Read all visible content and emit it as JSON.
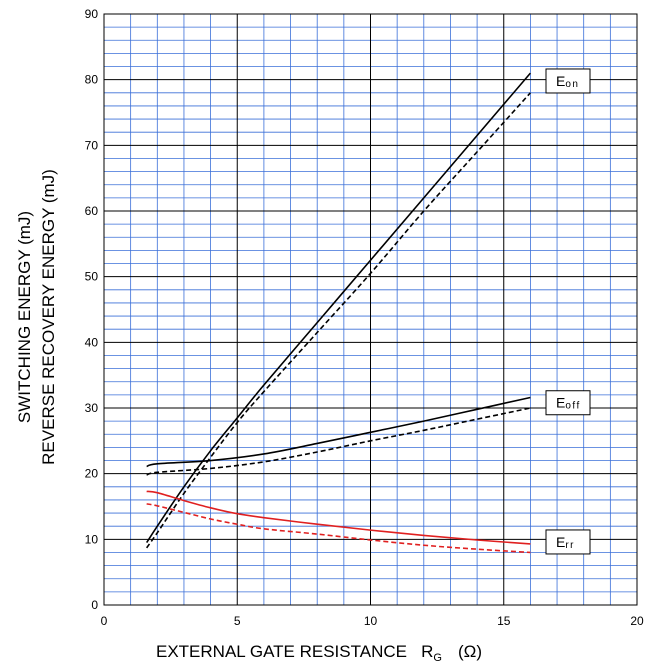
{
  "chart_data": {
    "type": "line",
    "xlabel": {
      "main": "EXTERNAL GATE RESISTANCE   R",
      "sub": "G",
      "unit": "(Ω)"
    },
    "ylabel": {
      "line1": "SWITCHING ENERGY   (mJ)",
      "line2": "REVERSE RECOVERY ENERGY   (mJ)"
    },
    "xlim": [
      0,
      20
    ],
    "ylim": [
      0,
      90
    ],
    "x_ticks": [
      0,
      5,
      10,
      15,
      20
    ],
    "y_ticks": [
      0,
      10,
      20,
      30,
      40,
      50,
      60,
      70,
      80,
      90
    ],
    "minor_x_step": 1,
    "minor_y_step": 2,
    "grid": true,
    "grid_color": "#3a6fd8",
    "series": [
      {
        "name": "Eon",
        "label_main": "E",
        "label_sub": "on",
        "color": "#000000",
        "dash": false,
        "x": [
          1.6,
          2,
          3,
          4,
          5,
          6,
          8,
          10,
          12,
          14,
          16
        ],
        "y": [
          9.5,
          12,
          18,
          23.5,
          28.5,
          33.5,
          43,
          52.5,
          62,
          71.5,
          81
        ]
      },
      {
        "name": "Eon-dashed",
        "color": "#000000",
        "dash": true,
        "x": [
          1.6,
          2,
          3,
          4,
          5,
          6,
          8,
          10,
          12,
          14,
          16
        ],
        "y": [
          8.7,
          11,
          17,
          22.5,
          27.8,
          32.5,
          41.5,
          50.5,
          60,
          69,
          78
        ]
      },
      {
        "name": "Eoff",
        "label_main": "E",
        "label_sub": "off",
        "color": "#000000",
        "dash": false,
        "x": [
          1.6,
          2,
          4,
          6,
          8,
          10,
          12,
          14,
          16
        ],
        "y": [
          21.1,
          21.5,
          22,
          23,
          24.6,
          26.3,
          28,
          29.8,
          31.6
        ]
      },
      {
        "name": "Eoff-dashed",
        "color": "#000000",
        "dash": true,
        "x": [
          1.6,
          2,
          4,
          6,
          8,
          10,
          12,
          14,
          16
        ],
        "y": [
          19.8,
          20.2,
          20.8,
          21.8,
          23.3,
          25,
          26.6,
          28.3,
          30
        ]
      },
      {
        "name": "Err",
        "label_main": "E",
        "label_sub": "rr",
        "color": "#e02020",
        "dash": false,
        "x": [
          1.6,
          2,
          3,
          4,
          5,
          6,
          8,
          10,
          12,
          14,
          16
        ],
        "y": [
          17.3,
          17.1,
          15.9,
          14.8,
          13.9,
          13.3,
          12.3,
          11.4,
          10.6,
          9.9,
          9.3
        ]
      },
      {
        "name": "Err-dashed",
        "color": "#e02020",
        "dash": true,
        "x": [
          1.6,
          2,
          3,
          4,
          5,
          6,
          8,
          10,
          12,
          14,
          16
        ],
        "y": [
          15.4,
          15.1,
          14.1,
          13.1,
          12.3,
          11.6,
          10.8,
          9.9,
          9.1,
          8.5,
          8.0
        ]
      }
    ],
    "series_labels": [
      {
        "series": "Eon",
        "y": 79.8
      },
      {
        "series": "Eoff",
        "y": 30.8
      },
      {
        "series": "Err",
        "y": 9.6
      }
    ]
  }
}
